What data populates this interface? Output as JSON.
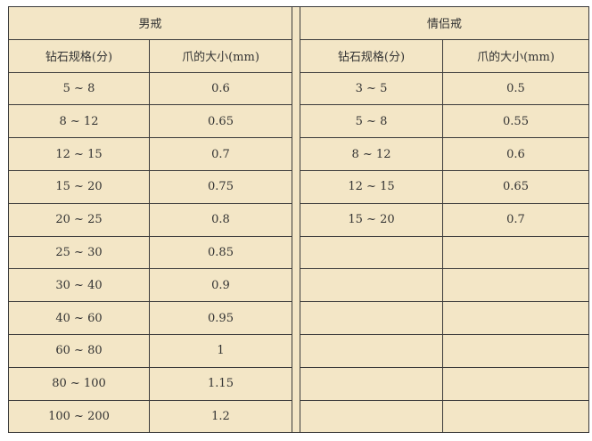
{
  "men": {
    "title": "男戒",
    "headers": [
      "钻石规格(分)",
      "爪的大小(mm)"
    ],
    "rows": [
      [
        "5 ~ 8",
        "0.6"
      ],
      [
        "8 ~ 12",
        "0.65"
      ],
      [
        "12 ~ 15",
        "0.7"
      ],
      [
        "15 ~ 20",
        "0.75"
      ],
      [
        "20 ~ 25",
        "0.8"
      ],
      [
        "25 ~ 30",
        "0.85"
      ],
      [
        "30 ~ 40",
        "0.9"
      ],
      [
        "40 ~ 60",
        "0.95"
      ],
      [
        "60 ~ 80",
        "1"
      ],
      [
        "80 ~ 100",
        "1.15"
      ],
      [
        "100 ~ 200",
        "1.2"
      ]
    ]
  },
  "couple": {
    "title": "情侣戒",
    "headers": [
      "钻石规格(分)",
      "爪的大小(mm)"
    ],
    "rows": [
      [
        "3 ~ 5",
        "0.5"
      ],
      [
        "5 ~ 8",
        "0.55"
      ],
      [
        "8 ~ 12",
        "0.6"
      ],
      [
        "12 ~ 15",
        "0.65"
      ],
      [
        "15 ~ 20",
        "0.7"
      ]
    ]
  }
}
